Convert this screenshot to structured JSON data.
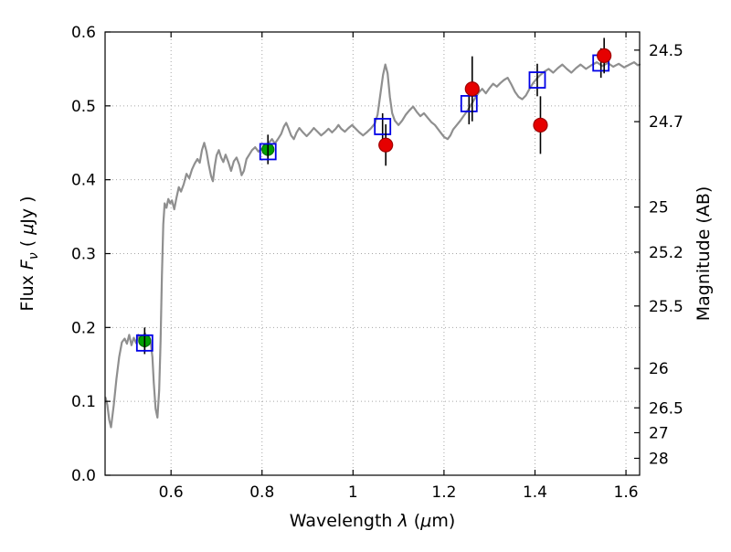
{
  "figure": {
    "background": "#ffffff",
    "frame_color": "#000000"
  },
  "chart_data": {
    "type": "line+scatter",
    "title": "",
    "xlabel_parts": [
      {
        "text": "Wavelength  ",
        "style": "normal"
      },
      {
        "text": "λ",
        "style": "italic"
      },
      {
        "text": " (",
        "style": "normal"
      },
      {
        "text": "μ",
        "style": "italic"
      },
      {
        "text": "m)",
        "style": "normal"
      }
    ],
    "ylabel_left_parts": [
      {
        "text": "Flux  ",
        "style": "normal"
      },
      {
        "text": "F",
        "style": "italic"
      },
      {
        "text": "ν",
        "style": "sub-italic"
      },
      {
        "text": "  ( ",
        "style": "normal"
      },
      {
        "text": "μ",
        "style": "italic"
      },
      {
        "text": "Jy )",
        "style": "normal"
      }
    ],
    "ylabel_right": "Magnitude (AB)",
    "xlim": [
      0.455,
      1.63
    ],
    "ylim": [
      0.0,
      0.6
    ],
    "grid": {
      "show": true,
      "style": "dotted",
      "color": "#a6a6a6"
    },
    "x_ticks": [
      {
        "v": 0.6,
        "label": "0.6"
      },
      {
        "v": 0.8,
        "label": "0.8"
      },
      {
        "v": 1.0,
        "label": "1"
      },
      {
        "v": 1.2,
        "label": "1.2"
      },
      {
        "v": 1.4,
        "label": "1.4"
      },
      {
        "v": 1.6,
        "label": "1.6"
      }
    ],
    "y_ticks_left": [
      {
        "v": 0.0,
        "label": "0.0"
      },
      {
        "v": 0.1,
        "label": "0.1"
      },
      {
        "v": 0.2,
        "label": "0.2"
      },
      {
        "v": 0.3,
        "label": "0.3"
      },
      {
        "v": 0.4,
        "label": "0.4"
      },
      {
        "v": 0.5,
        "label": "0.5"
      },
      {
        "v": 0.6,
        "label": "0.6"
      }
    ],
    "right_axis": {
      "label": "Magnitude (AB)",
      "zero_point_mag_for_1uJy": 23.9,
      "ticks": [
        {
          "m": 24.5,
          "label": "24.5"
        },
        {
          "m": 24.7,
          "label": "24.7"
        },
        {
          "m": 25.0,
          "label": "25"
        },
        {
          "m": 25.2,
          "label": "25.2"
        },
        {
          "m": 25.5,
          "label": "25.5"
        },
        {
          "m": 26.0,
          "label": "26"
        },
        {
          "m": 26.5,
          "label": "26.5"
        },
        {
          "m": 27.0,
          "label": "27"
        },
        {
          "m": 28.0,
          "label": "28"
        }
      ]
    },
    "series": [
      {
        "name": "model-spectrum",
        "type": "line",
        "color": "#8f8f8f",
        "width": 2.2,
        "points": [
          [
            0.456,
            0.105
          ],
          [
            0.46,
            0.095
          ],
          [
            0.464,
            0.075
          ],
          [
            0.468,
            0.065
          ],
          [
            0.474,
            0.095
          ],
          [
            0.48,
            0.13
          ],
          [
            0.486,
            0.16
          ],
          [
            0.492,
            0.18
          ],
          [
            0.498,
            0.185
          ],
          [
            0.503,
            0.178
          ],
          [
            0.508,
            0.19
          ],
          [
            0.513,
            0.176
          ],
          [
            0.518,
            0.186
          ],
          [
            0.523,
            0.179
          ],
          [
            0.528,
            0.19
          ],
          [
            0.533,
            0.181
          ],
          [
            0.538,
            0.188
          ],
          [
            0.543,
            0.192
          ],
          [
            0.548,
            0.183
          ],
          [
            0.552,
            0.187
          ],
          [
            0.556,
            0.176
          ],
          [
            0.559,
            0.16
          ],
          [
            0.562,
            0.125
          ],
          [
            0.566,
            0.09
          ],
          [
            0.57,
            0.078
          ],
          [
            0.574,
            0.115
          ],
          [
            0.577,
            0.18
          ],
          [
            0.58,
            0.27
          ],
          [
            0.583,
            0.34
          ],
          [
            0.586,
            0.368
          ],
          [
            0.59,
            0.362
          ],
          [
            0.594,
            0.374
          ],
          [
            0.598,
            0.368
          ],
          [
            0.602,
            0.372
          ],
          [
            0.607,
            0.36
          ],
          [
            0.612,
            0.376
          ],
          [
            0.617,
            0.39
          ],
          [
            0.622,
            0.384
          ],
          [
            0.628,
            0.394
          ],
          [
            0.634,
            0.408
          ],
          [
            0.64,
            0.402
          ],
          [
            0.646,
            0.414
          ],
          [
            0.652,
            0.422
          ],
          [
            0.658,
            0.428
          ],
          [
            0.663,
            0.423
          ],
          [
            0.668,
            0.44
          ],
          [
            0.673,
            0.45
          ],
          [
            0.678,
            0.438
          ],
          [
            0.683,
            0.42
          ],
          [
            0.688,
            0.405
          ],
          [
            0.692,
            0.398
          ],
          [
            0.696,
            0.418
          ],
          [
            0.7,
            0.433
          ],
          [
            0.705,
            0.44
          ],
          [
            0.71,
            0.43
          ],
          [
            0.715,
            0.424
          ],
          [
            0.72,
            0.434
          ],
          [
            0.726,
            0.424
          ],
          [
            0.732,
            0.412
          ],
          [
            0.738,
            0.425
          ],
          [
            0.744,
            0.43
          ],
          [
            0.75,
            0.42
          ],
          [
            0.755,
            0.406
          ],
          [
            0.76,
            0.412
          ],
          [
            0.766,
            0.428
          ],
          [
            0.772,
            0.434
          ],
          [
            0.778,
            0.44
          ],
          [
            0.785,
            0.444
          ],
          [
            0.792,
            0.438
          ],
          [
            0.8,
            0.442
          ],
          [
            0.808,
            0.446
          ],
          [
            0.815,
            0.45
          ],
          [
            0.822,
            0.455
          ],
          [
            0.828,
            0.449
          ],
          [
            0.835,
            0.455
          ],
          [
            0.842,
            0.462
          ],
          [
            0.848,
            0.472
          ],
          [
            0.853,
            0.477
          ],
          [
            0.858,
            0.47
          ],
          [
            0.864,
            0.46
          ],
          [
            0.87,
            0.455
          ],
          [
            0.876,
            0.464
          ],
          [
            0.882,
            0.47
          ],
          [
            0.89,
            0.464
          ],
          [
            0.898,
            0.459
          ],
          [
            0.906,
            0.464
          ],
          [
            0.914,
            0.47
          ],
          [
            0.922,
            0.465
          ],
          [
            0.93,
            0.46
          ],
          [
            0.938,
            0.464
          ],
          [
            0.946,
            0.469
          ],
          [
            0.954,
            0.464
          ],
          [
            0.962,
            0.469
          ],
          [
            0.968,
            0.474
          ],
          [
            0.974,
            0.469
          ],
          [
            0.982,
            0.465
          ],
          [
            0.99,
            0.47
          ],
          [
            0.998,
            0.474
          ],
          [
            1.006,
            0.469
          ],
          [
            1.014,
            0.464
          ],
          [
            1.022,
            0.46
          ],
          [
            1.03,
            0.464
          ],
          [
            1.04,
            0.47
          ],
          [
            1.048,
            0.476
          ],
          [
            1.054,
            0.488
          ],
          [
            1.06,
            0.515
          ],
          [
            1.066,
            0.542
          ],
          [
            1.071,
            0.556
          ],
          [
            1.076,
            0.544
          ],
          [
            1.081,
            0.512
          ],
          [
            1.086,
            0.49
          ],
          [
            1.092,
            0.48
          ],
          [
            1.1,
            0.474
          ],
          [
            1.108,
            0.48
          ],
          [
            1.116,
            0.488
          ],
          [
            1.124,
            0.494
          ],
          [
            1.132,
            0.499
          ],
          [
            1.14,
            0.492
          ],
          [
            1.148,
            0.486
          ],
          [
            1.156,
            0.49
          ],
          [
            1.164,
            0.484
          ],
          [
            1.172,
            0.478
          ],
          [
            1.18,
            0.474
          ],
          [
            1.19,
            0.466
          ],
          [
            1.2,
            0.458
          ],
          [
            1.208,
            0.455
          ],
          [
            1.214,
            0.46
          ],
          [
            1.22,
            0.468
          ],
          [
            1.228,
            0.474
          ],
          [
            1.236,
            0.48
          ],
          [
            1.244,
            0.487
          ],
          [
            1.252,
            0.494
          ],
          [
            1.26,
            0.502
          ],
          [
            1.268,
            0.51
          ],
          [
            1.276,
            0.518
          ],
          [
            1.284,
            0.523
          ],
          [
            1.292,
            0.517
          ],
          [
            1.3,
            0.524
          ],
          [
            1.308,
            0.53
          ],
          [
            1.316,
            0.526
          ],
          [
            1.324,
            0.531
          ],
          [
            1.332,
            0.535
          ],
          [
            1.34,
            0.538
          ],
          [
            1.348,
            0.529
          ],
          [
            1.356,
            0.519
          ],
          [
            1.364,
            0.512
          ],
          [
            1.372,
            0.509
          ],
          [
            1.38,
            0.514
          ],
          [
            1.388,
            0.523
          ],
          [
            1.396,
            0.531
          ],
          [
            1.404,
            0.537
          ],
          [
            1.412,
            0.542
          ],
          [
            1.42,
            0.546
          ],
          [
            1.43,
            0.55
          ],
          [
            1.44,
            0.545
          ],
          [
            1.45,
            0.551
          ],
          [
            1.46,
            0.556
          ],
          [
            1.47,
            0.55
          ],
          [
            1.48,
            0.545
          ],
          [
            1.49,
            0.551
          ],
          [
            1.5,
            0.556
          ],
          [
            1.512,
            0.55
          ],
          [
            1.524,
            0.555
          ],
          [
            1.536,
            0.559
          ],
          [
            1.548,
            0.554
          ],
          [
            1.56,
            0.558
          ],
          [
            1.572,
            0.553
          ],
          [
            1.584,
            0.557
          ],
          [
            1.596,
            0.552
          ],
          [
            1.608,
            0.556
          ],
          [
            1.618,
            0.559
          ],
          [
            1.626,
            0.555
          ],
          [
            1.63,
            0.556
          ]
        ]
      },
      {
        "name": "photometry-green-circles",
        "type": "scatter",
        "marker": "circle",
        "fill": "#00a000",
        "edge": "#006e00",
        "size": 13,
        "error_color": "#000000",
        "points": [
          {
            "x": 0.542,
            "y": 0.182,
            "yerr": 0.018
          },
          {
            "x": 0.813,
            "y": 0.441,
            "yerr": 0.02
          }
        ]
      },
      {
        "name": "photometry-blue-open-squares",
        "type": "scatter",
        "marker": "open-square",
        "fill": "none",
        "edge": "#0000e6",
        "size": 17,
        "error_color": "#000000",
        "points": [
          {
            "x": 0.542,
            "y": 0.179,
            "yerr": 0.012
          },
          {
            "x": 0.813,
            "y": 0.438,
            "yerr": 0.012
          },
          {
            "x": 1.065,
            "y": 0.472,
            "yerr": 0.018
          },
          {
            "x": 1.255,
            "y": 0.503,
            "yerr": 0.028
          },
          {
            "x": 1.405,
            "y": 0.535,
            "yerr": 0.022
          },
          {
            "x": 1.545,
            "y": 0.558,
            "yerr": 0.02
          }
        ]
      },
      {
        "name": "photometry-red-circles",
        "type": "scatter",
        "marker": "circle",
        "fill": "#e60000",
        "edge": "#a00000",
        "size": 15,
        "error_color": "#000000",
        "points": [
          {
            "x": 1.072,
            "y": 0.447,
            "yerr": 0.028
          },
          {
            "x": 1.262,
            "y": 0.523,
            "yerr": 0.044
          },
          {
            "x": 1.412,
            "y": 0.474,
            "yerr": 0.039
          },
          {
            "x": 1.552,
            "y": 0.568,
            "yerr": 0.024
          }
        ]
      }
    ]
  }
}
